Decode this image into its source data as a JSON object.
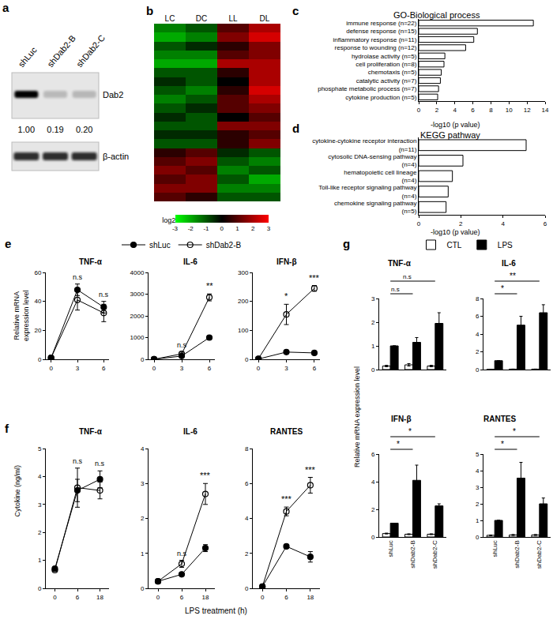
{
  "blot": {
    "panel": "a",
    "lanes": [
      "shLuc",
      "shDab2-B",
      "shDab2-C"
    ],
    "bands": [
      {
        "label": "Dab2",
        "values": [
          1.0,
          0.19,
          0.2
        ],
        "value_labels": [
          "1.00",
          "0.19",
          "0.20"
        ]
      },
      {
        "label": "β-actin"
      }
    ]
  },
  "chart_data": [
    {
      "panel": "b",
      "type": "heatmap",
      "columns": [
        "LC",
        "DC",
        "LL",
        "DL"
      ],
      "cells": [
        [
          -1.5,
          -1,
          1,
          2
        ],
        [
          -2,
          -1.5,
          1.5,
          2.5
        ],
        [
          -1,
          -0.5,
          0.5,
          1.5
        ],
        [
          -1.5,
          -1.5,
          1,
          1.5
        ],
        [
          -2,
          -2,
          2,
          2
        ],
        [
          -1,
          -1,
          0.5,
          2
        ],
        [
          -0.5,
          -1,
          0,
          2
        ],
        [
          -1,
          -1.5,
          0.5,
          2.5
        ],
        [
          -1.5,
          -1,
          1,
          2
        ],
        [
          -1,
          -0.5,
          1,
          1.5
        ],
        [
          -0.5,
          -1,
          0,
          1
        ],
        [
          -1,
          -1,
          1.5,
          1.5
        ],
        [
          -0.5,
          -0.5,
          0.5,
          1
        ],
        [
          -1,
          -1,
          0.5,
          1.5
        ],
        [
          0.5,
          1,
          -0.5,
          -1
        ],
        [
          1,
          1.5,
          -1,
          -1.5
        ],
        [
          1.5,
          1,
          -1.5,
          -1
        ],
        [
          1,
          1.5,
          -1,
          -2
        ],
        [
          1.5,
          1.5,
          -1.5,
          -1.5
        ],
        [
          1,
          0.5,
          -1,
          -1
        ]
      ],
      "color_range": [
        -3,
        3
      ],
      "color_ticks": [
        -3,
        -2,
        -1,
        0,
        1,
        2,
        3
      ],
      "color_title": "log2",
      "colors": [
        "#00ff00",
        "#000000",
        "#ff0000"
      ],
      "tick_labels": "x"
    },
    {
      "panel": "c",
      "type": "bar",
      "orientation": "horizontal",
      "title": "GO-Biological process",
      "xlabel": "-log10 (p value)",
      "categories": [
        "immune response (n=22)",
        "defense response (n=15)",
        "inflammatory response (n=11)",
        "response to wounding (n=12)",
        "hydrolase activity (n=5)",
        "cell proliferation (n=8)",
        "chemotaxis (n=5)",
        "catalytic activity (n=7)",
        "phosphate metabolic process (n=7)",
        "cytokine production (n=5)"
      ],
      "values": [
        12.7,
        6.5,
        6.1,
        5.2,
        2.9,
        2.8,
        2.5,
        2.4,
        2.2,
        2.1
      ],
      "color": "#ffffff",
      "xlim": [
        0,
        14
      ],
      "xticks": [
        0,
        2,
        4,
        6,
        8,
        10,
        12,
        14
      ]
    },
    {
      "panel": "d",
      "type": "bar",
      "orientation": "horizontal",
      "title": "KEGG pathway",
      "xlabel": "-log10 (p value)",
      "categories": [
        "cytokine-cytokine receptor interaction\n(n=11)",
        "cytosolic DNA-sensing pathway\n(n=4)",
        "hematopoietic cell lineage\n(n=4)",
        "Toll-like receptor signaling pathway\n(n=4)",
        "chemokine signaling pathway\n(n=5)"
      ],
      "values": [
        5.1,
        2.1,
        1.6,
        1.4,
        1.3
      ],
      "color": "#ffffff",
      "xlim": [
        0,
        6
      ],
      "xticks": [
        0,
        2,
        4,
        6
      ]
    },
    {
      "panel": "e",
      "type": "line",
      "ylabel": "Relative mRNA\nexpression level",
      "legend": "top",
      "x": [
        0,
        3,
        6
      ],
      "xlim": [
        -0.6,
        6.6
      ],
      "xticks": [
        0,
        3,
        6
      ],
      "series": [
        {
          "name": "shLuc",
          "color": "#000000",
          "marker": "circle"
        },
        {
          "name": "shDab2-B",
          "color": "#000000",
          "marker": "circle-open"
        }
      ],
      "charts": [
        {
          "title": "TNF-α",
          "values": [
            [
              1,
              48,
              36
            ],
            [
              1,
              41,
              32
            ]
          ],
          "errors": [
            [
              0.3,
              4,
              4
            ],
            [
              0.3,
              7,
              6
            ]
          ],
          "ylim": [
            0,
            60
          ],
          "yticks": [
            0,
            20,
            40,
            60
          ],
          "marks": [
            {
              "x": 3,
              "label": "n.s"
            },
            {
              "x": 6,
              "label": "n.s"
            }
          ]
        },
        {
          "title": "IL-6",
          "values": [
            [
              1,
              150,
              1000
            ],
            [
              1,
              250,
              2850
            ]
          ],
          "errors": [
            [
              0,
              30,
              40
            ],
            [
              0,
              80,
              160
            ]
          ],
          "ylim": [
            0,
            4000
          ],
          "yticks": [
            0,
            1000,
            2000,
            3000,
            4000
          ],
          "marks": [
            {
              "x": 3,
              "label": "n.s"
            },
            {
              "x": 6,
              "label": "**"
            }
          ]
        },
        {
          "title": "IFN-β",
          "values": [
            [
              1,
              25,
              22
            ],
            [
              2,
              155,
              245
            ]
          ],
          "errors": [
            [
              0.2,
              3,
              2
            ],
            [
              0.5,
              35,
              10
            ]
          ],
          "ylim": [
            0,
            300
          ],
          "yticks": [
            0,
            100,
            200,
            300
          ],
          "marks": [
            {
              "x": 3,
              "label": "*"
            },
            {
              "x": 6,
              "label": "***"
            }
          ]
        }
      ]
    },
    {
      "panel": "f",
      "type": "line",
      "ylabel": "Cytokine (ng/ml)",
      "xlabel": "LPS treatment (h)",
      "categories": [
        "0",
        "6",
        "18"
      ],
      "series": [
        {
          "name": "shLuc",
          "color": "#000000",
          "marker": "circle"
        },
        {
          "name": "shDab2-B",
          "color": "#000000",
          "marker": "circle-open"
        }
      ],
      "charts": [
        {
          "title": "TNF-α",
          "values": [
            [
              0.7,
              3.5,
              3.9
            ],
            [
              0.65,
              3.6,
              3.5
            ]
          ],
          "errors": [
            [
              0.05,
              0.4,
              0.3
            ],
            [
              0.05,
              0.7,
              0.3
            ]
          ],
          "ylim": [
            0,
            5
          ],
          "yticks": [
            0,
            1,
            2,
            3,
            4,
            5
          ],
          "marks": [
            {
              "x": "6",
              "label": "n.s"
            },
            {
              "x": "18",
              "label": "n.s"
            }
          ]
        },
        {
          "title": "IL-6",
          "values": [
            [
              0.2,
              0.4,
              1.15
            ],
            [
              0.2,
              0.7,
              2.7
            ]
          ],
          "errors": [
            [
              0.02,
              0.05,
              0.1
            ],
            [
              0.02,
              0.1,
              0.3
            ]
          ],
          "ylim": [
            0,
            4
          ],
          "yticks": [
            0,
            1,
            2,
            3,
            4
          ],
          "marks": [
            {
              "x": "6",
              "label": "n.s"
            },
            {
              "x": "18",
              "label": "***"
            }
          ]
        },
        {
          "title": "RANTES",
          "values": [
            [
              0.1,
              2.4,
              1.8
            ],
            [
              0.1,
              4.4,
              5.9
            ]
          ],
          "errors": [
            [
              0.02,
              0.1,
              0.3
            ],
            [
              0.02,
              0.25,
              0.45
            ]
          ],
          "ylim": [
            0,
            8
          ],
          "yticks": [
            0,
            2,
            4,
            6,
            8
          ],
          "marks": [
            {
              "x": "6",
              "label": "***"
            },
            {
              "x": "18",
              "label": "***"
            }
          ]
        }
      ]
    },
    {
      "panel": "g",
      "type": "bar",
      "ylabel": "Relative mRNA expression level",
      "legend": "top",
      "categories": [
        "shLuc",
        "shDab2-B",
        "shDab2-C"
      ],
      "series": [
        {
          "name": "CTL",
          "color": "#ffffff"
        },
        {
          "name": "LPS",
          "color": "#000000"
        }
      ],
      "charts": [
        {
          "title": "TNF-α",
          "values": [
            [
              0.15,
              0.2,
              0.15
            ],
            [
              1,
              1.15,
              1.95
            ]
          ],
          "errors": [
            [
              0.03,
              0.05,
              0.03
            ],
            [
              0,
              0.2,
              0.45
            ]
          ],
          "ylim": [
            0,
            3
          ],
          "yticks": [
            0,
            1,
            2,
            3
          ],
          "tick_labels": "y",
          "comparisons": [
            {
              "from": "shLuc",
              "to": "shDab2-B",
              "label": "n.s"
            },
            {
              "from": "shLuc",
              "to": "shDab2-C",
              "label": "n.s"
            }
          ]
        },
        {
          "title": "IL-6",
          "values": [
            [
              0.03,
              0.05,
              0.05
            ],
            [
              1,
              5,
              6.4
            ]
          ],
          "errors": [
            [
              0,
              0,
              0
            ],
            [
              0,
              1,
              0.9
            ]
          ],
          "ylim": [
            0,
            8
          ],
          "yticks": [
            0,
            2,
            4,
            6,
            8
          ],
          "tick_labels": "y",
          "comparisons": [
            {
              "from": "shLuc",
              "to": "shDab2-B",
              "label": "*"
            },
            {
              "from": "shLuc",
              "to": "shDab2-C",
              "label": "**"
            }
          ]
        },
        {
          "title": "IFN-β",
          "values": [
            [
              0.25,
              0.2,
              0.2
            ],
            [
              1,
              4.1,
              2.25
            ]
          ],
          "errors": [
            [
              0.03,
              0.03,
              0.03
            ],
            [
              0,
              1.1,
              0.15
            ]
          ],
          "ylim": [
            0,
            6
          ],
          "yticks": [
            0,
            2,
            4,
            6
          ],
          "comparisons": [
            {
              "from": "shLuc",
              "to": "shDab2-B",
              "label": "*"
            },
            {
              "from": "shLuc",
              "to": "shDab2-C",
              "label": "*"
            }
          ]
        },
        {
          "title": "RANTES",
          "values": [
            [
              0.1,
              0.12,
              0.12
            ],
            [
              1,
              3.55,
              2
            ]
          ],
          "errors": [
            [
              0.02,
              0.03,
              0.03
            ],
            [
              0,
              0.95,
              0.35
            ]
          ],
          "ylim": [
            0,
            5
          ],
          "yticks": [
            0,
            1,
            2,
            3,
            4,
            5
          ],
          "comparisons": [
            {
              "from": "shLuc",
              "to": "shDab2-B",
              "label": "*"
            },
            {
              "from": "shLuc",
              "to": "shDab2-C",
              "label": "*"
            }
          ]
        }
      ]
    }
  ]
}
